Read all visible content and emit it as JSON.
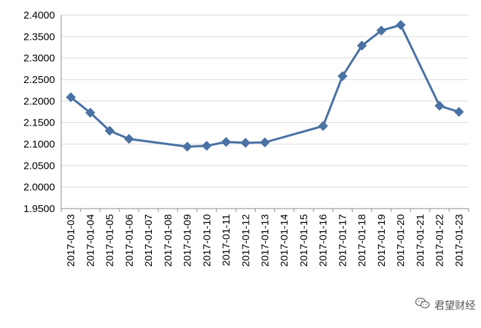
{
  "chart_data": {
    "type": "line",
    "categories": [
      "2017-01-03",
      "2017-01-04",
      "2017-01-05",
      "2017-01-06",
      "2017-01-07",
      "2017-01-08",
      "2017-01-09",
      "2017-01-10",
      "2017-01-11",
      "2017-01-12",
      "2017-01-13",
      "2017-01-14",
      "2017-01-15",
      "2017-01-16",
      "2017-01-17",
      "2017-01-18",
      "2017-01-19",
      "2017-01-20",
      "2017-01-21",
      "2017-01-22",
      "2017-01-23"
    ],
    "series": [
      {
        "values": [
          2.209,
          2.173,
          2.131,
          2.112,
          null,
          null,
          2.094,
          2.096,
          2.105,
          2.103,
          2.104,
          null,
          null,
          2.142,
          2.258,
          2.329,
          2.364,
          2.377,
          null,
          2.189,
          2.175
        ]
      }
    ],
    "yticks": [
      "1.9500",
      "2.0000",
      "2.0500",
      "2.1000",
      "2.1500",
      "2.2000",
      "2.2500",
      "2.3000",
      "2.3500",
      "2.4000"
    ],
    "ylim": [
      1.95,
      2.4
    ],
    "grid": true,
    "color": "#4A72A4"
  },
  "watermark": {
    "text": "君望财经",
    "icon": "wechat-icon"
  }
}
